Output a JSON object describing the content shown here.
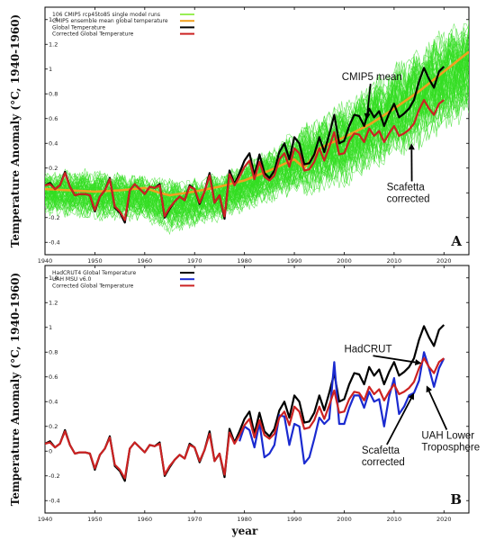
{
  "x_axis_label": "year",
  "chart_data": [
    {
      "type": "line",
      "panel_label": "A",
      "ylabel": "Temperature Anomaly (°C, 1940-1960)",
      "xlim": [
        1940,
        2025
      ],
      "ylim": [
        -0.5,
        1.5
      ],
      "x_ticks": [
        1940,
        1950,
        1960,
        1970,
        1980,
        1990,
        2000,
        2010,
        2020
      ],
      "y_ticks": [
        -0.4,
        -0.2,
        0,
        0.2,
        0.4,
        0.6,
        0.8,
        1,
        1.2,
        1.4
      ],
      "y_tick_labels": [
        "-0.4",
        "-0.2",
        "0",
        "0.2",
        "0.4",
        "0.6",
        "0.8",
        "1",
        "1.2",
        "1.4"
      ],
      "legend": [
        {
          "label": "106 CMIP5 rcp45to85 single model runs",
          "color": "#99ee55"
        },
        {
          "label": "CMIP5 ensemble mean global temperature",
          "color": "#f0a020"
        },
        {
          "label": "Global Temperature",
          "color": "#000000"
        },
        {
          "label": "Corrected Global Temperature",
          "color": "#cc2222"
        }
      ],
      "annotations": [
        {
          "lines": [
            "CMIP5 mean"
          ],
          "text_x": 1999.5,
          "text_y": 0.91,
          "arrow_to": [
            2004.5,
            0.59
          ]
        },
        {
          "lines": [
            "Scafetta",
            "corrected"
          ],
          "text_x": 2008.5,
          "text_y": 0.02,
          "arrow_to": [
            2013.5,
            0.4
          ]
        }
      ],
      "series": [
        {
          "key": "ensemble_spread",
          "color": "#33dd22",
          "members": 106,
          "x": [
            1940,
            1945,
            1950,
            1955,
            1960,
            1965,
            1970,
            1975,
            1980,
            1985,
            1990,
            1995,
            2000,
            2005,
            2010,
            2015,
            2020,
            2025
          ],
          "lower": [
            -0.2,
            -0.22,
            -0.24,
            -0.25,
            -0.25,
            -0.35,
            -0.3,
            -0.25,
            -0.18,
            -0.1,
            -0.05,
            -0.05,
            0.02,
            0.12,
            0.22,
            0.32,
            0.45,
            0.55
          ],
          "upper": [
            0.2,
            0.22,
            0.22,
            0.2,
            0.18,
            0.15,
            0.15,
            0.2,
            0.28,
            0.4,
            0.55,
            0.68,
            0.8,
            0.95,
            1.1,
            1.25,
            1.4,
            1.5
          ]
        },
        {
          "key": "ensemble_mean",
          "color": "#f0a020",
          "x": [
            1940,
            1945,
            1950,
            1955,
            1960,
            1963,
            1965,
            1970,
            1975,
            1980,
            1985,
            1990,
            1992,
            1995,
            2000,
            2005,
            2010,
            2015,
            2020,
            2025
          ],
          "y": [
            0.03,
            0.02,
            0.01,
            0.02,
            0.04,
            0.0,
            -0.02,
            0.01,
            0.05,
            0.1,
            0.18,
            0.27,
            0.2,
            0.36,
            0.45,
            0.55,
            0.68,
            0.82,
            0.98,
            1.14
          ]
        },
        {
          "key": "global",
          "color": "#000000",
          "x": [
            1940,
            1941,
            1942,
            1943,
            1944,
            1945,
            1946,
            1947,
            1948,
            1949,
            1950,
            1951,
            1952,
            1953,
            1954,
            1955,
            1956,
            1957,
            1958,
            1959,
            1960,
            1961,
            1962,
            1963,
            1964,
            1965,
            1966,
            1967,
            1968,
            1969,
            1970,
            1971,
            1972,
            1973,
            1974,
            1975,
            1976,
            1977,
            1978,
            1979,
            1980,
            1981,
            1982,
            1983,
            1984,
            1985,
            1986,
            1987,
            1988,
            1989,
            1990,
            1991,
            1992,
            1993,
            1994,
            1995,
            1996,
            1997,
            1998,
            1999,
            2000,
            2001,
            2002,
            2003,
            2004,
            2005,
            2006,
            2007,
            2008,
            2009,
            2010,
            2011,
            2012,
            2013,
            2014,
            2015,
            2016,
            2017,
            2018,
            2019,
            2020
          ],
          "y": [
            0.06,
            0.08,
            0.03,
            0.06,
            0.17,
            0.05,
            -0.02,
            -0.01,
            -0.01,
            -0.02,
            -0.15,
            -0.03,
            0.02,
            0.12,
            -0.12,
            -0.16,
            -0.24,
            0.02,
            0.07,
            0.03,
            -0.01,
            0.05,
            0.04,
            0.07,
            -0.2,
            -0.13,
            -0.07,
            -0.03,
            -0.06,
            0.06,
            0.03,
            -0.09,
            0.01,
            0.16,
            -0.08,
            -0.02,
            -0.21,
            0.18,
            0.07,
            0.16,
            0.26,
            0.32,
            0.14,
            0.31,
            0.16,
            0.12,
            0.18,
            0.33,
            0.4,
            0.27,
            0.45,
            0.4,
            0.23,
            0.24,
            0.31,
            0.45,
            0.33,
            0.47,
            0.63,
            0.4,
            0.42,
            0.54,
            0.63,
            0.62,
            0.54,
            0.68,
            0.61,
            0.66,
            0.54,
            0.64,
            0.72,
            0.61,
            0.64,
            0.68,
            0.75,
            0.9,
            1.01,
            0.92,
            0.85,
            0.98,
            1.02
          ]
        },
        {
          "key": "corrected",
          "color": "#cc2222",
          "x": [
            1940,
            1941,
            1942,
            1943,
            1944,
            1945,
            1946,
            1947,
            1948,
            1949,
            1950,
            1951,
            1952,
            1953,
            1954,
            1955,
            1956,
            1957,
            1958,
            1959,
            1960,
            1961,
            1962,
            1963,
            1964,
            1965,
            1966,
            1967,
            1968,
            1969,
            1970,
            1971,
            1972,
            1973,
            1974,
            1975,
            1976,
            1977,
            1978,
            1979,
            1980,
            1981,
            1982,
            1983,
            1984,
            1985,
            1986,
            1987,
            1988,
            1989,
            1990,
            1991,
            1992,
            1993,
            1994,
            1995,
            1996,
            1997,
            1998,
            1999,
            2000,
            2001,
            2002,
            2003,
            2004,
            2005,
            2006,
            2007,
            2008,
            2009,
            2010,
            2011,
            2012,
            2013,
            2014,
            2015,
            2016,
            2017,
            2018,
            2019,
            2020
          ],
          "y": [
            0.06,
            0.07,
            0.03,
            0.06,
            0.16,
            0.05,
            -0.02,
            -0.01,
            -0.01,
            -0.02,
            -0.14,
            -0.03,
            0.02,
            0.11,
            -0.11,
            -0.15,
            -0.22,
            0.02,
            0.07,
            0.03,
            -0.01,
            0.05,
            0.04,
            0.06,
            -0.19,
            -0.12,
            -0.07,
            -0.03,
            -0.06,
            0.05,
            0.03,
            -0.08,
            0.01,
            0.14,
            -0.08,
            -0.02,
            -0.19,
            0.15,
            0.06,
            0.13,
            0.21,
            0.26,
            0.11,
            0.25,
            0.13,
            0.1,
            0.14,
            0.27,
            0.32,
            0.21,
            0.36,
            0.32,
            0.18,
            0.19,
            0.25,
            0.36,
            0.26,
            0.37,
            0.49,
            0.31,
            0.32,
            0.42,
            0.48,
            0.47,
            0.41,
            0.52,
            0.46,
            0.5,
            0.41,
            0.48,
            0.54,
            0.46,
            0.48,
            0.51,
            0.56,
            0.67,
            0.75,
            0.68,
            0.63,
            0.72,
            0.75
          ]
        }
      ]
    },
    {
      "type": "line",
      "panel_label": "B",
      "ylabel": "Temperature Anomaly (°C, 1940-1960)",
      "xlim": [
        1940,
        2025
      ],
      "ylim": [
        -0.5,
        1.5
      ],
      "x_ticks": [
        1940,
        1950,
        1960,
        1970,
        1980,
        1990,
        2000,
        2010,
        2020
      ],
      "y_ticks": [
        -0.4,
        -0.2,
        0,
        0.2,
        0.4,
        0.6,
        0.8,
        1,
        1.2,
        1.4
      ],
      "y_tick_labels": [
        "-0.4",
        "-0.2",
        "0",
        "0.2",
        "0.4",
        "0.6",
        "0.8",
        "1",
        "1.2",
        "1.4"
      ],
      "legend": [
        {
          "label": "HadCRUT4 Global Temperature",
          "color": "#000000"
        },
        {
          "label": "UAH MSU v6.0",
          "color": "#1a2ad0"
        },
        {
          "label": "Corrected Global Temperature",
          "color": "#cc2222"
        }
      ],
      "annotations": [
        {
          "lines": [
            "HadCRUT"
          ],
          "text_x": 2000,
          "text_y": 0.8,
          "arrow_to": [
            2015.5,
            0.71
          ]
        },
        {
          "lines": [
            "UAH Lower",
            "Troposphere"
          ],
          "text_x": 2015.5,
          "text_y": 0.1,
          "arrow_to": [
            2016.5,
            0.53
          ]
        },
        {
          "lines": [
            "Scafetta",
            "corrected"
          ],
          "text_x": 2003.5,
          "text_y": -0.02,
          "arrow_to": [
            2014,
            0.47
          ]
        }
      ],
      "series": [
        {
          "key": "hadcrut",
          "color": "#000000",
          "x": [
            1940,
            1941,
            1942,
            1943,
            1944,
            1945,
            1946,
            1947,
            1948,
            1949,
            1950,
            1951,
            1952,
            1953,
            1954,
            1955,
            1956,
            1957,
            1958,
            1959,
            1960,
            1961,
            1962,
            1963,
            1964,
            1965,
            1966,
            1967,
            1968,
            1969,
            1970,
            1971,
            1972,
            1973,
            1974,
            1975,
            1976,
            1977,
            1978,
            1979,
            1980,
            1981,
            1982,
            1983,
            1984,
            1985,
            1986,
            1987,
            1988,
            1989,
            1990,
            1991,
            1992,
            1993,
            1994,
            1995,
            1996,
            1997,
            1998,
            1999,
            2000,
            2001,
            2002,
            2003,
            2004,
            2005,
            2006,
            2007,
            2008,
            2009,
            2010,
            2011,
            2012,
            2013,
            2014,
            2015,
            2016,
            2017,
            2018,
            2019,
            2020
          ],
          "y": [
            0.06,
            0.08,
            0.03,
            0.06,
            0.17,
            0.05,
            -0.02,
            -0.01,
            -0.01,
            -0.02,
            -0.15,
            -0.03,
            0.02,
            0.12,
            -0.12,
            -0.16,
            -0.24,
            0.02,
            0.07,
            0.03,
            -0.01,
            0.05,
            0.04,
            0.07,
            -0.2,
            -0.13,
            -0.07,
            -0.03,
            -0.06,
            0.06,
            0.03,
            -0.09,
            0.01,
            0.16,
            -0.08,
            -0.02,
            -0.21,
            0.18,
            0.07,
            0.16,
            0.26,
            0.32,
            0.14,
            0.31,
            0.16,
            0.12,
            0.18,
            0.33,
            0.4,
            0.27,
            0.45,
            0.4,
            0.23,
            0.24,
            0.31,
            0.45,
            0.33,
            0.47,
            0.63,
            0.4,
            0.42,
            0.54,
            0.63,
            0.62,
            0.54,
            0.68,
            0.61,
            0.66,
            0.54,
            0.64,
            0.72,
            0.61,
            0.64,
            0.68,
            0.75,
            0.9,
            1.01,
            0.92,
            0.85,
            0.98,
            1.02
          ]
        },
        {
          "key": "uah",
          "color": "#1a2ad0",
          "x": [
            1979,
            1980,
            1981,
            1982,
            1983,
            1984,
            1985,
            1986,
            1987,
            1988,
            1989,
            1990,
            1991,
            1992,
            1993,
            1994,
            1995,
            1996,
            1997,
            1998,
            1999,
            2000,
            2001,
            2002,
            2003,
            2004,
            2005,
            2006,
            2007,
            2008,
            2009,
            2010,
            2011,
            2012,
            2013,
            2014,
            2015,
            2016,
            2017,
            2018,
            2019,
            2020
          ],
          "y": [
            0.08,
            0.2,
            0.17,
            0.03,
            0.23,
            -0.05,
            -0.02,
            0.05,
            0.29,
            0.28,
            0.05,
            0.22,
            0.2,
            -0.1,
            -0.05,
            0.1,
            0.27,
            0.22,
            0.26,
            0.72,
            0.22,
            0.22,
            0.35,
            0.45,
            0.45,
            0.35,
            0.48,
            0.4,
            0.42,
            0.2,
            0.44,
            0.59,
            0.3,
            0.36,
            0.45,
            0.47,
            0.57,
            0.8,
            0.67,
            0.52,
            0.67,
            0.75
          ]
        },
        {
          "key": "corrected",
          "color": "#cc2222",
          "x": [
            1940,
            1941,
            1942,
            1943,
            1944,
            1945,
            1946,
            1947,
            1948,
            1949,
            1950,
            1951,
            1952,
            1953,
            1954,
            1955,
            1956,
            1957,
            1958,
            1959,
            1960,
            1961,
            1962,
            1963,
            1964,
            1965,
            1966,
            1967,
            1968,
            1969,
            1970,
            1971,
            1972,
            1973,
            1974,
            1975,
            1976,
            1977,
            1978,
            1979,
            1980,
            1981,
            1982,
            1983,
            1984,
            1985,
            1986,
            1987,
            1988,
            1989,
            1990,
            1991,
            1992,
            1993,
            1994,
            1995,
            1996,
            1997,
            1998,
            1999,
            2000,
            2001,
            2002,
            2003,
            2004,
            2005,
            2006,
            2007,
            2008,
            2009,
            2010,
            2011,
            2012,
            2013,
            2014,
            2015,
            2016,
            2017,
            2018,
            2019,
            2020
          ],
          "y": [
            0.06,
            0.07,
            0.03,
            0.06,
            0.16,
            0.05,
            -0.02,
            -0.01,
            -0.01,
            -0.02,
            -0.14,
            -0.03,
            0.02,
            0.11,
            -0.11,
            -0.15,
            -0.22,
            0.02,
            0.07,
            0.03,
            -0.01,
            0.05,
            0.04,
            0.06,
            -0.19,
            -0.12,
            -0.07,
            -0.03,
            -0.06,
            0.05,
            0.03,
            -0.08,
            0.01,
            0.14,
            -0.08,
            -0.02,
            -0.19,
            0.15,
            0.06,
            0.13,
            0.21,
            0.26,
            0.11,
            0.25,
            0.13,
            0.1,
            0.14,
            0.27,
            0.32,
            0.21,
            0.36,
            0.32,
            0.18,
            0.19,
            0.25,
            0.36,
            0.26,
            0.37,
            0.49,
            0.31,
            0.32,
            0.42,
            0.48,
            0.47,
            0.41,
            0.52,
            0.46,
            0.5,
            0.41,
            0.48,
            0.54,
            0.46,
            0.48,
            0.51,
            0.56,
            0.67,
            0.75,
            0.68,
            0.63,
            0.72,
            0.75
          ]
        }
      ]
    }
  ]
}
